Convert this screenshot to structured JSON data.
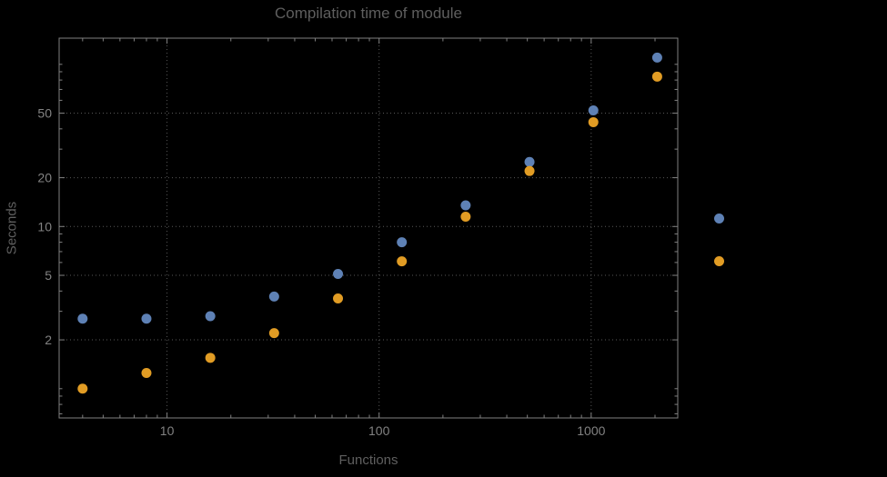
{
  "colors": {
    "background": "#000000",
    "frame": "#808080",
    "grid": "#575757",
    "tick_label": "#828282",
    "title_text": "#5e5e5e",
    "axis_label_text": "#5f5f5f",
    "series1": "#5e81b5",
    "series2": "#e19c24"
  },
  "chart_data": {
    "type": "scatter",
    "title": "Compilation time of module",
    "xlabel": "Functions",
    "ylabel": "Seconds",
    "x_scale": "log",
    "y_scale": "log",
    "xlim": [
      3.1,
      2560
    ],
    "ylim": [
      0.66,
      145
    ],
    "x_ticks": [
      10,
      100,
      1000
    ],
    "y_ticks": [
      2,
      5,
      10,
      20,
      50
    ],
    "grid": "dotted",
    "legend_position": "right-outside",
    "x": [
      4,
      8,
      16,
      32,
      64,
      128,
      256,
      512,
      1024,
      2048
    ],
    "series": [
      {
        "name": "series-1",
        "label": "",
        "color": "#5e81b5",
        "values": [
          2.7,
          2.7,
          2.8,
          3.7,
          5.1,
          8.0,
          13.5,
          25,
          52,
          110
        ]
      },
      {
        "name": "series-2",
        "label": "",
        "color": "#e19c24",
        "values": [
          1.0,
          1.25,
          1.55,
          2.2,
          3.6,
          6.1,
          11.5,
          22,
          44,
          84
        ]
      }
    ]
  }
}
